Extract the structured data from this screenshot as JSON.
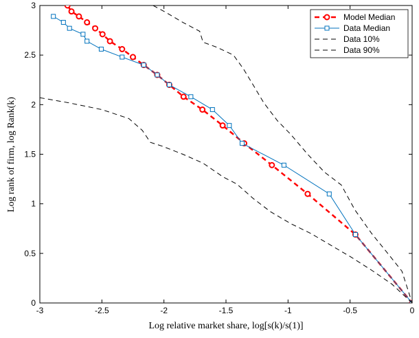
{
  "chart_data": {
    "type": "line",
    "xlabel": "Log relative market share, log[s(k)/s(1)]",
    "ylabel": "Log rank of firm, log Rank(k)",
    "xlim": [
      -3,
      0
    ],
    "ylim": [
      0,
      3
    ],
    "xticks": [
      -3,
      -2.5,
      -2,
      -1.5,
      -1,
      -0.5,
      0
    ],
    "yticks": [
      0,
      0.5,
      1,
      1.5,
      2,
      2.5,
      3
    ],
    "grid": false,
    "legend": "upper right",
    "series": [
      {
        "name": "Model Median",
        "color": "#ff0000",
        "line_style": "dashed",
        "marker": "circle",
        "x": [
          -2.777,
          -2.745,
          -2.685,
          -2.62,
          -2.554,
          -2.495,
          -2.435,
          -2.337,
          -2.25,
          -2.163,
          -2.054,
          -1.957,
          -1.842,
          -1.69,
          -1.527,
          -1.353,
          -1.13,
          -0.842,
          -0.457,
          0
        ],
        "values": [
          3.0,
          2.94,
          2.89,
          2.83,
          2.77,
          2.71,
          2.64,
          2.56,
          2.48,
          2.4,
          2.3,
          2.2,
          2.08,
          1.95,
          1.79,
          1.61,
          1.39,
          1.1,
          0.69,
          0
        ]
      },
      {
        "name": "Data Median",
        "color": "#0072bd",
        "line_style": "solid",
        "marker": "square",
        "x": [
          -2.891,
          -2.81,
          -2.761,
          -2.652,
          -2.62,
          -2.505,
          -2.337,
          -2.163,
          -2.054,
          -1.957,
          -1.783,
          -1.609,
          -1.473,
          -1.37,
          -1.033,
          -0.668,
          -0.457,
          0
        ],
        "values": [
          2.89,
          2.83,
          2.77,
          2.71,
          2.64,
          2.56,
          2.48,
          2.4,
          2.3,
          2.2,
          2.08,
          1.95,
          1.79,
          1.61,
          1.39,
          1.1,
          0.69,
          0
        ]
      },
      {
        "name": "Data 10%",
        "color": "#000000",
        "line_style": "dashed",
        "marker": "none",
        "x": [
          -3,
          -2.772,
          -2.5,
          -2.283,
          -2.174,
          -2.109,
          -2.011,
          -1.848,
          -1.685,
          -1.522,
          -1.413,
          -1.277,
          -1.141,
          -0.978,
          -0.815,
          -0.652,
          -0.489,
          -0.326,
          -0.163,
          0
        ],
        "values": [
          2.07,
          2.02,
          1.95,
          1.86,
          1.74,
          1.62,
          1.58,
          1.5,
          1.41,
          1.27,
          1.2,
          1.05,
          0.92,
          0.8,
          0.7,
          0.58,
          0.46,
          0.33,
          0.19,
          0
        ]
      },
      {
        "name": "Data 90%",
        "color": "#000000",
        "line_style": "dashed",
        "marker": "none",
        "x": [
          -2.087,
          -1.984,
          -1.848,
          -1.712,
          -1.685,
          -1.576,
          -1.44,
          -1.359,
          -1.277,
          -1.196,
          -1.087,
          -0.978,
          -0.842,
          -0.707,
          -0.571,
          -0.462,
          -0.326,
          -0.19,
          -0.082,
          0
        ],
        "values": [
          3.0,
          2.93,
          2.83,
          2.74,
          2.63,
          2.58,
          2.5,
          2.36,
          2.19,
          2.02,
          1.84,
          1.7,
          1.5,
          1.32,
          1.19,
          0.94,
          0.7,
          0.49,
          0.32,
          0
        ]
      }
    ]
  }
}
